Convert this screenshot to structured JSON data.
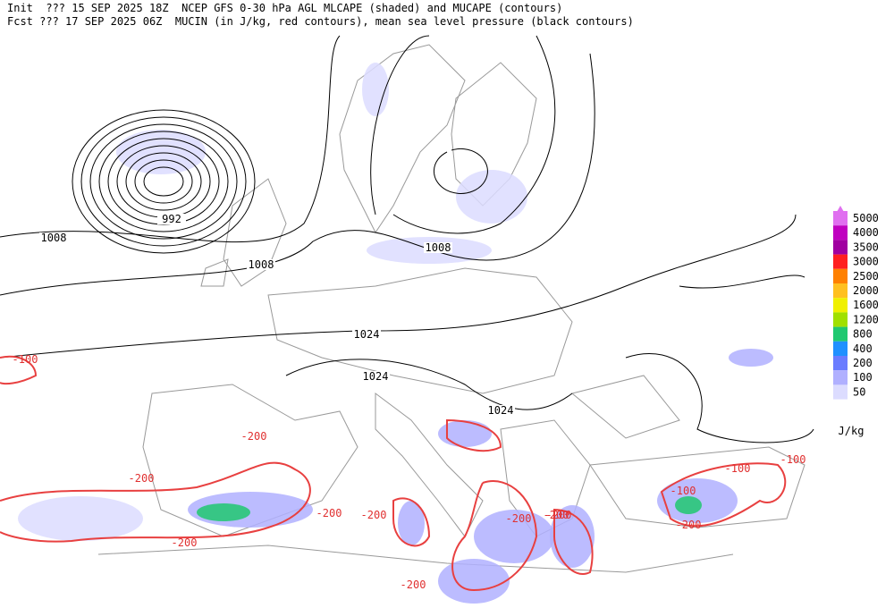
{
  "header": {
    "line1": "Init  ??? 15 SEP 2025 18Z  NCEP GFS 0-30 hPa AGL MLCAPE (shaded) and MUCAPE (contours)",
    "line2": "Fcst ??? 17 SEP 2025 06Z  MUCIN (in J/kg, red contours), mean sea level pressure (black contours)"
  },
  "pressure_labels": [
    1008,
    992,
    1008,
    1008,
    1024,
    1024,
    1024
  ],
  "cin_labels": [
    -200,
    -200,
    -200,
    -200,
    -200,
    -200,
    -200,
    -200,
    -100,
    -100,
    -100,
    -200,
    -200,
    -100
  ],
  "colorbar": {
    "levels": [
      5000,
      4000,
      3500,
      3000,
      2500,
      2000,
      1600,
      1200,
      800,
      400,
      200,
      100,
      50
    ],
    "colors": [
      "#e070f0",
      "#c000c0",
      "#a000a0",
      "#ff2020",
      "#ff8000",
      "#ffc020",
      "#f0f000",
      "#a0e000",
      "#20c870",
      "#2090ff",
      "#6a7cff",
      "#b0b0ff",
      "#dcdcff"
    ],
    "unit": "J/kg"
  }
}
